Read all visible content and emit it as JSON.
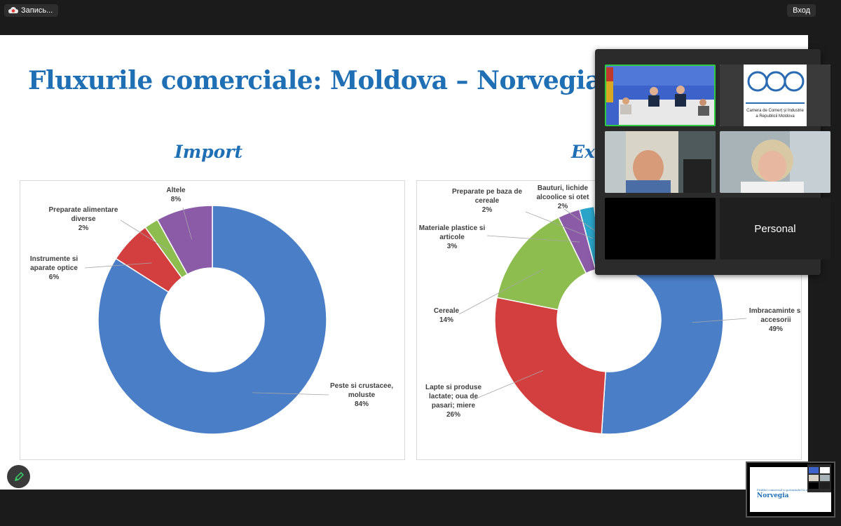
{
  "toolbar": {
    "record_label": "Запись...",
    "exit_label": "Вход"
  },
  "slide": {
    "title": "Fluxurile comerciale: Moldova – Norvegia",
    "import_title": "Import",
    "export_title": "Ex",
    "import_labels": [
      {
        "lines": [
          "Altele",
          "8%"
        ]
      },
      {
        "lines": [
          "Preparate alimentare",
          "diverse",
          "2%"
        ]
      },
      {
        "lines": [
          "Instrumente si",
          "aparate optice",
          "6%"
        ]
      },
      {
        "lines": [
          "Peste si crustacee,",
          "moluste",
          "84%"
        ]
      }
    ],
    "export_labels": [
      {
        "lines": [
          "Preparate pe baza de",
          "cereale",
          "2%"
        ]
      },
      {
        "lines": [
          "Bauturi, lichide",
          "alcoolice si otet",
          "2%"
        ]
      },
      {
        "lines": [
          "Materiale plastice si",
          "articole",
          "3%"
        ]
      },
      {
        "lines": [
          "Cereale",
          "14%"
        ]
      },
      {
        "lines": [
          "Imbracaminte si",
          "accesorii",
          "49%"
        ]
      },
      {
        "lines": [
          "Lapte si produse",
          "lactate; oua de",
          "pasari; miere",
          "26%"
        ]
      }
    ]
  },
  "chart_data": [
    {
      "type": "pie",
      "title": "Import",
      "categories": [
        "Peste si crustacee, moluste",
        "Instrumente si aparate optice",
        "Preparate alimentare diverse",
        "Altele"
      ],
      "values": [
        84,
        6,
        2,
        8
      ],
      "colors": [
        "#4a7ec7",
        "#d33f3f",
        "#8dbd4f",
        "#8b5ba8"
      ]
    },
    {
      "type": "pie",
      "title": "Ex",
      "categories": [
        "Imbracaminte si accesorii",
        "Lapte si produse lactate; oua de pasari; miere",
        "Cereale",
        "Materiale plastice si articole",
        "Preparate pe baza de cereale",
        "Bauturi, lichide alcoolice si otet"
      ],
      "values": [
        49,
        26,
        14,
        3,
        2,
        2
      ],
      "colors": [
        "#4a7ec7",
        "#d33f3f",
        "#8dbd4f",
        "#8b5ba8",
        "#2aa5c9",
        "#f29a2e"
      ]
    }
  ],
  "video": {
    "participant_label": "Personal",
    "logo_line1": "Camera de Comerț și Industrie",
    "logo_line2": "a Republicii Moldova"
  },
  "thumbnail": {
    "subtitle": "Profilul comercial și potențialul la export",
    "title": "Norvegia"
  },
  "colors": {
    "accent": "#1f6fb5",
    "active_speaker": "#2ecc40"
  }
}
